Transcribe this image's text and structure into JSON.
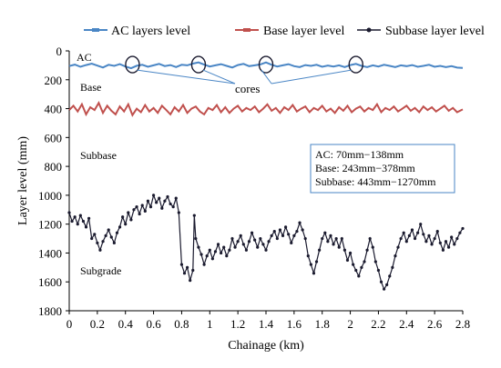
{
  "chart_data": {
    "type": "line",
    "title": "",
    "xlabel": "Chainage (km)",
    "ylabel": "Layer level (mm)",
    "xlim": [
      0,
      2.8
    ],
    "ylim": [
      1800,
      0
    ],
    "y_inverted": true,
    "x_ticks": [
      "0",
      "0.2",
      "0.4",
      "0.6",
      "0.8",
      "1",
      "1.2",
      "1.4",
      "1.6",
      "1.8",
      "2",
      "2.2",
      "2.4",
      "2.6",
      "2.8"
    ],
    "y_ticks": [
      "0",
      "200",
      "400",
      "600",
      "800",
      "1000",
      "1200",
      "1400",
      "1600",
      "1800"
    ],
    "grid": false,
    "legend_position": "top",
    "series": [
      {
        "name": "AC layers level",
        "color": "#4a86c5",
        "marker": "dash",
        "points": [
          [
            0.0,
            105
          ],
          [
            0.04,
            95
          ],
          [
            0.08,
            110
          ],
          [
            0.12,
            98
          ],
          [
            0.16,
            88
          ],
          [
            0.2,
            102
          ],
          [
            0.24,
            115
          ],
          [
            0.28,
            96
          ],
          [
            0.32,
            104
          ],
          [
            0.36,
            92
          ],
          [
            0.4,
            108
          ],
          [
            0.44,
            120
          ],
          [
            0.48,
            103
          ],
          [
            0.52,
            96
          ],
          [
            0.56,
            110
          ],
          [
            0.6,
            100
          ],
          [
            0.64,
            90
          ],
          [
            0.68,
            105
          ],
          [
            0.72,
            98
          ],
          [
            0.76,
            112
          ],
          [
            0.8,
            96
          ],
          [
            0.84,
            100
          ],
          [
            0.88,
            88
          ],
          [
            0.92,
            80
          ],
          [
            0.96,
            95
          ],
          [
            1.0,
            108
          ],
          [
            1.04,
            100
          ],
          [
            1.08,
            92
          ],
          [
            1.12,
            104
          ],
          [
            1.16,
            115
          ],
          [
            1.2,
            98
          ],
          [
            1.24,
            90
          ],
          [
            1.28,
            106
          ],
          [
            1.32,
            100
          ],
          [
            1.36,
            94
          ],
          [
            1.4,
            80
          ],
          [
            1.44,
            96
          ],
          [
            1.48,
            108
          ],
          [
            1.52,
            100
          ],
          [
            1.56,
            92
          ],
          [
            1.6,
            106
          ],
          [
            1.64,
            112
          ],
          [
            1.68,
            98
          ],
          [
            1.72,
            104
          ],
          [
            1.76,
            96
          ],
          [
            1.8,
            110
          ],
          [
            1.84,
            102
          ],
          [
            1.88,
            108
          ],
          [
            1.92,
            100
          ],
          [
            1.96,
            112
          ],
          [
            2.0,
            98
          ],
          [
            2.04,
            90
          ],
          [
            2.08,
            104
          ],
          [
            2.12,
            112
          ],
          [
            2.16,
            100
          ],
          [
            2.2,
            108
          ],
          [
            2.24,
            96
          ],
          [
            2.28,
            104
          ],
          [
            2.32,
            112
          ],
          [
            2.36,
            100
          ],
          [
            2.4,
            106
          ],
          [
            2.44,
            98
          ],
          [
            2.48,
            110
          ],
          [
            2.52,
            104
          ],
          [
            2.56,
            96
          ],
          [
            2.6,
            110
          ],
          [
            2.64,
            104
          ],
          [
            2.68,
            112
          ],
          [
            2.72,
            106
          ],
          [
            2.76,
            116
          ],
          [
            2.8,
            118
          ]
        ]
      },
      {
        "name": "Base layer level",
        "color": "#c0504d",
        "marker": "dash",
        "points": [
          [
            0.0,
            410
          ],
          [
            0.03,
            380
          ],
          [
            0.06,
            420
          ],
          [
            0.09,
            370
          ],
          [
            0.12,
            440
          ],
          [
            0.15,
            390
          ],
          [
            0.18,
            410
          ],
          [
            0.21,
            360
          ],
          [
            0.24,
            430
          ],
          [
            0.27,
            380
          ],
          [
            0.3,
            415
          ],
          [
            0.33,
            440
          ],
          [
            0.36,
            385
          ],
          [
            0.39,
            420
          ],
          [
            0.42,
            370
          ],
          [
            0.45,
            445
          ],
          [
            0.48,
            400
          ],
          [
            0.51,
            425
          ],
          [
            0.54,
            375
          ],
          [
            0.57,
            420
          ],
          [
            0.6,
            395
          ],
          [
            0.63,
            430
          ],
          [
            0.66,
            380
          ],
          [
            0.69,
            410
          ],
          [
            0.72,
            440
          ],
          [
            0.75,
            390
          ],
          [
            0.78,
            420
          ],
          [
            0.81,
            375
          ],
          [
            0.84,
            430
          ],
          [
            0.87,
            400
          ],
          [
            0.9,
            385
          ],
          [
            0.93,
            420
          ],
          [
            0.96,
            440
          ],
          [
            0.99,
            395
          ],
          [
            1.02,
            410
          ],
          [
            1.05,
            375
          ],
          [
            1.08,
            425
          ],
          [
            1.11,
            390
          ],
          [
            1.14,
            430
          ],
          [
            1.17,
            400
          ],
          [
            1.2,
            380
          ],
          [
            1.23,
            420
          ],
          [
            1.26,
            395
          ],
          [
            1.29,
            410
          ],
          [
            1.32,
            385
          ],
          [
            1.35,
            425
          ],
          [
            1.38,
            400
          ],
          [
            1.41,
            370
          ],
          [
            1.44,
            415
          ],
          [
            1.47,
            395
          ],
          [
            1.5,
            430
          ],
          [
            1.53,
            390
          ],
          [
            1.56,
            410
          ],
          [
            1.59,
            375
          ],
          [
            1.62,
            420
          ],
          [
            1.65,
            400
          ],
          [
            1.68,
            385
          ],
          [
            1.71,
            425
          ],
          [
            1.74,
            395
          ],
          [
            1.77,
            410
          ],
          [
            1.8,
            380
          ],
          [
            1.83,
            420
          ],
          [
            1.86,
            400
          ],
          [
            1.89,
            430
          ],
          [
            1.92,
            390
          ],
          [
            1.95,
            415
          ],
          [
            1.98,
            380
          ],
          [
            2.01,
            425
          ],
          [
            2.04,
            400
          ],
          [
            2.07,
            385
          ],
          [
            2.1,
            420
          ],
          [
            2.13,
            395
          ],
          [
            2.16,
            410
          ],
          [
            2.19,
            370
          ],
          [
            2.22,
            425
          ],
          [
            2.25,
            395
          ],
          [
            2.28,
            410
          ],
          [
            2.31,
            385
          ],
          [
            2.34,
            420
          ],
          [
            2.37,
            400
          ],
          [
            2.4,
            380
          ],
          [
            2.43,
            415
          ],
          [
            2.46,
            395
          ],
          [
            2.49,
            425
          ],
          [
            2.52,
            385
          ],
          [
            2.55,
            410
          ],
          [
            2.58,
            390
          ],
          [
            2.61,
            420
          ],
          [
            2.64,
            400
          ],
          [
            2.67,
            380
          ],
          [
            2.7,
            415
          ],
          [
            2.73,
            395
          ],
          [
            2.76,
            425
          ],
          [
            2.8,
            405
          ]
        ]
      },
      {
        "name": "Subbase layer level",
        "color": "#1a1a2e",
        "marker": "dot",
        "points": [
          [
            0.0,
            1120
          ],
          [
            0.02,
            1180
          ],
          [
            0.04,
            1150
          ],
          [
            0.06,
            1200
          ],
          [
            0.08,
            1140
          ],
          [
            0.1,
            1180
          ],
          [
            0.12,
            1220
          ],
          [
            0.14,
            1160
          ],
          [
            0.16,
            1300
          ],
          [
            0.18,
            1270
          ],
          [
            0.2,
            1330
          ],
          [
            0.22,
            1380
          ],
          [
            0.24,
            1320
          ],
          [
            0.26,
            1280
          ],
          [
            0.28,
            1240
          ],
          [
            0.3,
            1290
          ],
          [
            0.32,
            1330
          ],
          [
            0.34,
            1260
          ],
          [
            0.36,
            1220
          ],
          [
            0.38,
            1150
          ],
          [
            0.4,
            1200
          ],
          [
            0.42,
            1120
          ],
          [
            0.44,
            1170
          ],
          [
            0.46,
            1100
          ],
          [
            0.48,
            1080
          ],
          [
            0.5,
            1130
          ],
          [
            0.52,
            1070
          ],
          [
            0.54,
            1110
          ],
          [
            0.56,
            1040
          ],
          [
            0.58,
            1080
          ],
          [
            0.6,
            1000
          ],
          [
            0.62,
            1050
          ],
          [
            0.64,
            1020
          ],
          [
            0.66,
            1090
          ],
          [
            0.68,
            1040
          ],
          [
            0.7,
            1010
          ],
          [
            0.72,
            1060
          ],
          [
            0.74,
            1080
          ],
          [
            0.76,
            1020
          ],
          [
            0.78,
            1120
          ],
          [
            0.8,
            1480
          ],
          [
            0.82,
            1540
          ],
          [
            0.84,
            1500
          ],
          [
            0.86,
            1590
          ],
          [
            0.88,
            1520
          ],
          [
            0.89,
            1140
          ],
          [
            0.9,
            1300
          ],
          [
            0.92,
            1360
          ],
          [
            0.94,
            1410
          ],
          [
            0.96,
            1480
          ],
          [
            0.98,
            1420
          ],
          [
            1.0,
            1380
          ],
          [
            1.02,
            1440
          ],
          [
            1.04,
            1390
          ],
          [
            1.06,
            1340
          ],
          [
            1.08,
            1400
          ],
          [
            1.1,
            1360
          ],
          [
            1.12,
            1420
          ],
          [
            1.14,
            1380
          ],
          [
            1.16,
            1300
          ],
          [
            1.18,
            1360
          ],
          [
            1.2,
            1320
          ],
          [
            1.22,
            1280
          ],
          [
            1.24,
            1340
          ],
          [
            1.26,
            1380
          ],
          [
            1.28,
            1320
          ],
          [
            1.3,
            1260
          ],
          [
            1.32,
            1310
          ],
          [
            1.34,
            1360
          ],
          [
            1.36,
            1300
          ],
          [
            1.38,
            1340
          ],
          [
            1.4,
            1380
          ],
          [
            1.42,
            1320
          ],
          [
            1.44,
            1280
          ],
          [
            1.46,
            1250
          ],
          [
            1.48,
            1300
          ],
          [
            1.5,
            1240
          ],
          [
            1.52,
            1280
          ],
          [
            1.54,
            1220
          ],
          [
            1.56,
            1270
          ],
          [
            1.58,
            1330
          ],
          [
            1.6,
            1280
          ],
          [
            1.62,
            1250
          ],
          [
            1.64,
            1190
          ],
          [
            1.66,
            1240
          ],
          [
            1.68,
            1300
          ],
          [
            1.7,
            1420
          ],
          [
            1.72,
            1480
          ],
          [
            1.74,
            1540
          ],
          [
            1.76,
            1460
          ],
          [
            1.78,
            1380
          ],
          [
            1.8,
            1300
          ],
          [
            1.82,
            1260
          ],
          [
            1.84,
            1320
          ],
          [
            1.86,
            1280
          ],
          [
            1.88,
            1340
          ],
          [
            1.9,
            1300
          ],
          [
            1.92,
            1360
          ],
          [
            1.94,
            1300
          ],
          [
            1.96,
            1380
          ],
          [
            1.98,
            1450
          ],
          [
            2.0,
            1400
          ],
          [
            2.02,
            1480
          ],
          [
            2.04,
            1520
          ],
          [
            2.06,
            1560
          ],
          [
            2.08,
            1500
          ],
          [
            2.1,
            1460
          ],
          [
            2.12,
            1380
          ],
          [
            2.14,
            1300
          ],
          [
            2.16,
            1360
          ],
          [
            2.18,
            1460
          ],
          [
            2.2,
            1520
          ],
          [
            2.22,
            1600
          ],
          [
            2.24,
            1650
          ],
          [
            2.26,
            1620
          ],
          [
            2.28,
            1560
          ],
          [
            2.3,
            1500
          ],
          [
            2.32,
            1420
          ],
          [
            2.34,
            1360
          ],
          [
            2.36,
            1300
          ],
          [
            2.38,
            1260
          ],
          [
            2.4,
            1320
          ],
          [
            2.42,
            1280
          ],
          [
            2.44,
            1240
          ],
          [
            2.46,
            1300
          ],
          [
            2.48,
            1260
          ],
          [
            2.5,
            1200
          ],
          [
            2.52,
            1270
          ],
          [
            2.54,
            1320
          ],
          [
            2.56,
            1280
          ],
          [
            2.58,
            1340
          ],
          [
            2.6,
            1300
          ],
          [
            2.62,
            1250
          ],
          [
            2.64,
            1330
          ],
          [
            2.66,
            1380
          ],
          [
            2.68,
            1320
          ],
          [
            2.7,
            1360
          ],
          [
            2.72,
            1290
          ],
          [
            2.74,
            1340
          ],
          [
            2.76,
            1300
          ],
          [
            2.78,
            1260
          ],
          [
            2.8,
            1230
          ]
        ]
      }
    ],
    "annotations": {
      "layer_labels": [
        "AC",
        "Base",
        "Subbase",
        "Subgrade"
      ],
      "cores_label": "cores",
      "core_locations_km": [
        0.45,
        0.92,
        1.4,
        2.04
      ],
      "info_box": [
        "AC: 70mm−138mm",
        "Base: 243mm−378mm",
        "Subbase: 443mm−1270mm"
      ]
    }
  }
}
